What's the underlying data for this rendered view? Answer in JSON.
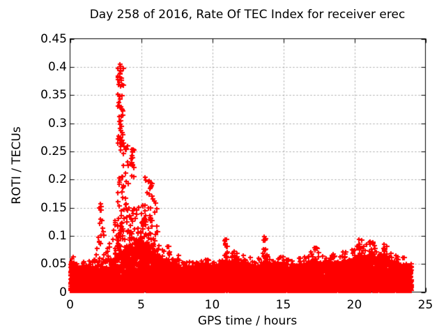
{
  "chart_data": {
    "type": "scatter",
    "title": "Day 258 of 2016, Rate Of TEC Index for receiver erec",
    "xlabel": "GPS time / hours",
    "ylabel": "ROTI / TECUs",
    "xlim": [
      0,
      25
    ],
    "ylim": [
      0,
      0.45
    ],
    "x_data_end": 24,
    "grid": true,
    "legend": "none",
    "marker": "+",
    "marker_color": "#ff0000",
    "grid_color": "#a0a0a0",
    "border_color": "#000000",
    "xticks": [
      {
        "v": 0,
        "label": "0"
      },
      {
        "v": 5,
        "label": "5"
      },
      {
        "v": 10,
        "label": "10"
      },
      {
        "v": 15,
        "label": "15"
      },
      {
        "v": 20,
        "label": "20"
      },
      {
        "v": 25,
        "label": "25"
      }
    ],
    "yticks": [
      {
        "v": 0,
        "label": "0"
      },
      {
        "v": 0.05,
        "label": "0.05"
      },
      {
        "v": 0.1,
        "label": "0.1"
      },
      {
        "v": 0.15,
        "label": "0.15"
      },
      {
        "v": 0.2,
        "label": "0.2"
      },
      {
        "v": 0.25,
        "label": "0.25"
      },
      {
        "v": 0.3,
        "label": "0.3"
      },
      {
        "v": 0.35,
        "label": "0.35"
      },
      {
        "v": 0.4,
        "label": "0.4"
      },
      {
        "v": 0.45,
        "label": "0.45"
      }
    ],
    "band_envelope": [
      [
        0,
        0.052
      ],
      [
        0.25,
        0.048
      ],
      [
        0.7,
        0.04
      ],
      [
        1.2,
        0.048
      ],
      [
        1.6,
        0.042
      ],
      [
        2.0,
        0.046
      ],
      [
        2.4,
        0.042
      ],
      [
        2.8,
        0.044
      ],
      [
        3.1,
        0.055
      ],
      [
        3.3,
        0.065
      ],
      [
        3.6,
        0.072
      ],
      [
        4.0,
        0.078
      ],
      [
        4.4,
        0.082
      ],
      [
        4.8,
        0.085
      ],
      [
        5.2,
        0.088
      ],
      [
        5.6,
        0.082
      ],
      [
        6.0,
        0.072
      ],
      [
        6.4,
        0.058
      ],
      [
        6.9,
        0.052
      ],
      [
        7.3,
        0.046
      ],
      [
        7.8,
        0.042
      ],
      [
        8.3,
        0.04
      ],
      [
        8.8,
        0.043
      ],
      [
        9.3,
        0.046
      ],
      [
        9.7,
        0.05
      ],
      [
        10.1,
        0.042
      ],
      [
        10.6,
        0.044
      ],
      [
        11.0,
        0.052
      ],
      [
        11.5,
        0.055
      ],
      [
        12.0,
        0.048
      ],
      [
        12.5,
        0.05
      ],
      [
        13.0,
        0.044
      ],
      [
        13.4,
        0.046
      ],
      [
        13.7,
        0.052
      ],
      [
        14.1,
        0.048
      ],
      [
        14.5,
        0.044
      ],
      [
        15.0,
        0.052
      ],
      [
        15.4,
        0.044
      ],
      [
        16.0,
        0.046
      ],
      [
        16.5,
        0.048
      ],
      [
        17.0,
        0.054
      ],
      [
        17.5,
        0.052
      ],
      [
        18.0,
        0.046
      ],
      [
        18.5,
        0.05
      ],
      [
        19.0,
        0.052
      ],
      [
        19.5,
        0.054
      ],
      [
        20.0,
        0.058
      ],
      [
        20.4,
        0.064
      ],
      [
        20.9,
        0.062
      ],
      [
        21.3,
        0.064
      ],
      [
        21.8,
        0.058
      ],
      [
        22.2,
        0.06
      ],
      [
        22.6,
        0.052
      ],
      [
        23.0,
        0.048
      ],
      [
        23.5,
        0.046
      ],
      [
        24.0,
        0.044
      ]
    ],
    "clusters": [
      {
        "x0": 3.3,
        "x1": 3.75,
        "y0": 0.255,
        "y1": 0.4,
        "n": 26
      },
      {
        "x0": 3.35,
        "x1": 4.1,
        "y0": 0.145,
        "y1": 0.26,
        "n": 34
      },
      {
        "x0": 3.28,
        "x1": 4.55,
        "y0": 0.082,
        "y1": 0.15,
        "n": 48
      },
      {
        "x0": 4.22,
        "x1": 4.5,
        "y0": 0.195,
        "y1": 0.255,
        "n": 12
      },
      {
        "x0": 4.5,
        "x1": 5.25,
        "y0": 0.082,
        "y1": 0.155,
        "n": 26
      },
      {
        "x0": 5.2,
        "x1": 5.95,
        "y0": 0.095,
        "y1": 0.2,
        "n": 26
      },
      {
        "x0": 5.9,
        "x1": 6.25,
        "y0": 0.06,
        "y1": 0.165,
        "n": 10
      },
      {
        "x0": 1.85,
        "x1": 2.4,
        "y0": 0.05,
        "y1": 0.135,
        "n": 16
      },
      {
        "x0": 2.05,
        "x1": 2.25,
        "y0": 0.145,
        "y1": 0.16,
        "n": 3
      },
      {
        "x0": 2.45,
        "x1": 2.8,
        "y0": 0.048,
        "y1": 0.088,
        "n": 10
      },
      {
        "x0": 2.95,
        "x1": 3.28,
        "y0": 0.05,
        "y1": 0.13,
        "n": 12
      },
      {
        "x0": 0.02,
        "x1": 0.4,
        "y0": 0.038,
        "y1": 0.056,
        "n": 10
      },
      {
        "x0": 1.05,
        "x1": 1.45,
        "y0": 0.038,
        "y1": 0.062,
        "n": 8
      },
      {
        "x0": 6.8,
        "x1": 7.05,
        "y0": 0.046,
        "y1": 0.083,
        "n": 8
      },
      {
        "x0": 7.4,
        "x1": 7.7,
        "y0": 0.042,
        "y1": 0.066,
        "n": 6
      },
      {
        "x0": 8.6,
        "x1": 9.0,
        "y0": 0.038,
        "y1": 0.055,
        "n": 6
      },
      {
        "x0": 9.5,
        "x1": 9.8,
        "y0": 0.042,
        "y1": 0.061,
        "n": 5
      },
      {
        "x0": 10.85,
        "x1": 11.1,
        "y0": 0.048,
        "y1": 0.094,
        "n": 10
      },
      {
        "x0": 11.4,
        "x1": 11.9,
        "y0": 0.045,
        "y1": 0.068,
        "n": 8
      },
      {
        "x0": 12.3,
        "x1": 12.7,
        "y0": 0.042,
        "y1": 0.062,
        "n": 6
      },
      {
        "x0": 13.55,
        "x1": 13.78,
        "y0": 0.048,
        "y1": 0.099,
        "n": 9
      },
      {
        "x0": 14.9,
        "x1": 15.15,
        "y0": 0.042,
        "y1": 0.066,
        "n": 6
      },
      {
        "x0": 16.4,
        "x1": 16.7,
        "y0": 0.04,
        "y1": 0.058,
        "n": 5
      },
      {
        "x0": 16.9,
        "x1": 17.6,
        "y0": 0.045,
        "y1": 0.08,
        "n": 12
      },
      {
        "x0": 18.3,
        "x1": 18.65,
        "y0": 0.042,
        "y1": 0.064,
        "n": 6
      },
      {
        "x0": 19.3,
        "x1": 19.6,
        "y0": 0.042,
        "y1": 0.06,
        "n": 5
      },
      {
        "x0": 19.95,
        "x1": 20.7,
        "y0": 0.048,
        "y1": 0.094,
        "n": 18
      },
      {
        "x0": 20.75,
        "x1": 21.45,
        "y0": 0.048,
        "y1": 0.09,
        "n": 16
      },
      {
        "x0": 21.9,
        "x1": 22.4,
        "y0": 0.045,
        "y1": 0.086,
        "n": 12
      },
      {
        "x0": 22.55,
        "x1": 23.1,
        "y0": 0.04,
        "y1": 0.068,
        "n": 8
      }
    ],
    "outliers": [
      [
        3.52,
        0.405
      ],
      [
        3.55,
        0.401
      ],
      [
        3.53,
        0.397
      ],
      [
        3.57,
        0.393
      ],
      [
        3.5,
        0.389
      ],
      [
        3.62,
        0.38
      ],
      [
        3.58,
        0.376
      ],
      [
        3.47,
        0.372
      ],
      [
        3.42,
        0.369
      ],
      [
        3.53,
        0.366
      ],
      [
        3.38,
        0.352
      ],
      [
        3.45,
        0.348
      ],
      [
        3.52,
        0.343
      ],
      [
        3.4,
        0.337
      ],
      [
        3.47,
        0.332
      ],
      [
        3.56,
        0.329
      ],
      [
        3.62,
        0.325
      ],
      [
        3.44,
        0.303
      ],
      [
        3.52,
        0.298
      ],
      [
        3.58,
        0.295
      ],
      [
        3.49,
        0.291
      ],
      [
        3.55,
        0.287
      ],
      [
        3.63,
        0.283
      ],
      [
        3.69,
        0.279
      ],
      [
        3.57,
        0.274
      ],
      [
        3.5,
        0.27
      ],
      [
        3.6,
        0.266
      ],
      [
        3.66,
        0.262
      ],
      [
        3.8,
        0.258
      ],
      [
        3.88,
        0.253
      ],
      [
        4.33,
        0.253
      ],
      [
        4.39,
        0.248
      ],
      [
        4.36,
        0.242
      ],
      [
        4.3,
        0.238
      ],
      [
        5.28,
        0.204
      ],
      [
        5.34,
        0.199
      ],
      [
        5.58,
        0.198
      ],
      [
        5.64,
        0.194
      ],
      [
        5.7,
        0.189
      ],
      [
        5.61,
        0.184
      ],
      [
        5.79,
        0.166
      ],
      [
        2.12,
        0.157
      ],
      [
        2.19,
        0.152
      ],
      [
        2.14,
        0.129
      ],
      [
        2.09,
        0.122
      ],
      [
        2.26,
        0.113
      ],
      [
        2.31,
        0.107
      ],
      [
        11.0,
        0.093
      ],
      [
        13.65,
        0.099
      ],
      [
        13.62,
        0.092
      ],
      [
        20.3,
        0.094
      ],
      [
        21.1,
        0.09
      ],
      [
        6.93,
        0.081
      ],
      [
        17.3,
        0.079
      ],
      [
        22.1,
        0.085
      ]
    ]
  }
}
